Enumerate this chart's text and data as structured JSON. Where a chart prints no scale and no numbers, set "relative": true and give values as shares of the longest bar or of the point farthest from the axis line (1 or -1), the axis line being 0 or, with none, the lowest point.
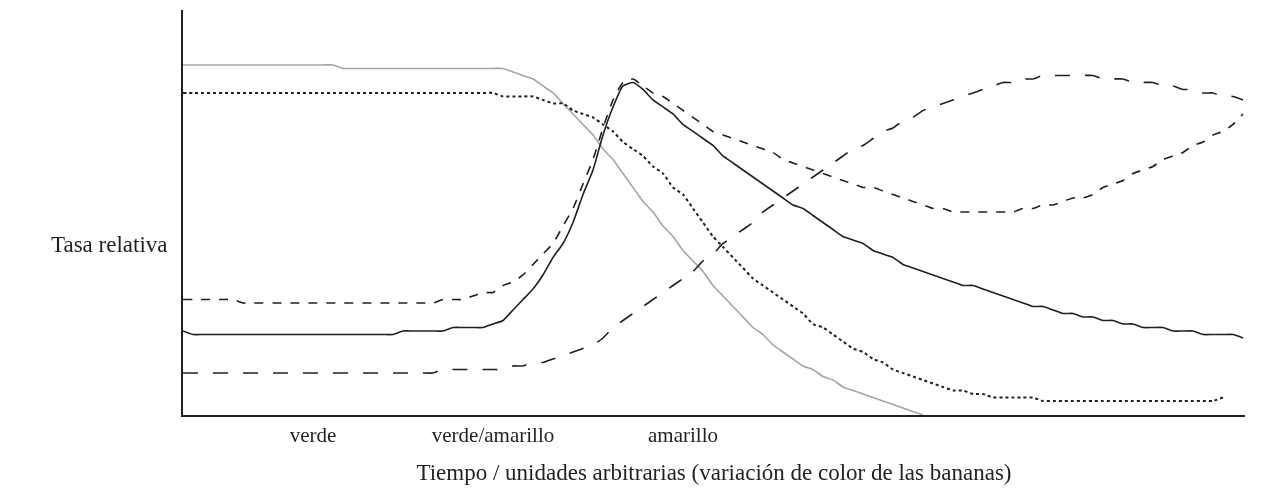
{
  "chart_data": {
    "type": "line",
    "relative": true,
    "xlabel": "Tiempo / unidades arbitrarias (variación de color de las bananas)",
    "ylabel": "Tasa relativa",
    "marker": "none",
    "categories": [
      null,
      null,
      null,
      null,
      null,
      null,
      null,
      null,
      null,
      null,
      null,
      null,
      null,
      "verde",
      null,
      null,
      null,
      null,
      null,
      null,
      null,
      null,
      null,
      null,
      null,
      null,
      null,
      null,
      null,
      null,
      null,
      "verde/amarillo",
      null,
      null,
      null,
      null,
      null,
      null,
      null,
      null,
      null,
      null,
      null,
      null,
      null,
      null,
      null,
      null,
      null,
      null,
      "amarillo",
      null,
      null,
      null,
      null,
      null,
      null,
      null,
      null,
      null,
      null,
      null,
      null,
      null,
      null,
      null,
      null,
      null,
      null,
      null,
      null,
      null,
      null,
      null,
      null,
      null,
      null,
      null,
      null,
      null,
      null,
      null,
      null,
      null,
      null,
      null,
      null,
      null,
      null,
      null,
      null,
      null,
      null,
      null,
      null,
      null,
      null,
      null,
      null,
      null,
      null,
      null,
      null,
      null,
      null,
      null,
      null
    ],
    "series": [
      {
        "color": "#a6a6a6",
        "line_style": "solid",
        "values": [
          1.0,
          1.0,
          1.0,
          1.0,
          1.0,
          1.0,
          1.0,
          1.0,
          1.0,
          1.0,
          1.0,
          1.0,
          1.0,
          1.0,
          1.0,
          1.0,
          0.99,
          0.99,
          0.99,
          0.99,
          0.99,
          0.99,
          0.99,
          0.99,
          0.99,
          0.99,
          0.99,
          0.99,
          0.99,
          0.99,
          0.99,
          0.99,
          0.99,
          0.98,
          0.97,
          0.96,
          0.94,
          0.92,
          0.89,
          0.86,
          0.83,
          0.8,
          0.76,
          0.73,
          0.69,
          0.65,
          0.61,
          0.58,
          0.54,
          0.51,
          0.47,
          0.44,
          0.41,
          0.37,
          0.34,
          0.31,
          0.28,
          0.25,
          0.23,
          0.2,
          0.18,
          0.16,
          0.14,
          0.13,
          0.11,
          0.1,
          0.08,
          0.07,
          0.06,
          0.05,
          0.04,
          0.03,
          0.02,
          0.01,
          0.0,
          null,
          null,
          null,
          null,
          null,
          null,
          null,
          null,
          null,
          null,
          null,
          null,
          null,
          null,
          null,
          null,
          null,
          null,
          null,
          null,
          null,
          null,
          null,
          null,
          null,
          null,
          null,
          null,
          null,
          null,
          null,
          null
        ]
      },
      {
        "color": "#231f20",
        "line_style": "dotted",
        "values": [
          0.92,
          0.92,
          0.92,
          0.92,
          0.92,
          0.92,
          0.92,
          0.92,
          0.92,
          0.92,
          0.92,
          0.92,
          0.92,
          0.92,
          0.92,
          0.92,
          0.92,
          0.92,
          0.92,
          0.92,
          0.92,
          0.92,
          0.92,
          0.92,
          0.92,
          0.92,
          0.92,
          0.92,
          0.92,
          0.92,
          0.92,
          0.92,
          0.91,
          0.91,
          0.91,
          0.91,
          0.9,
          0.89,
          0.89,
          0.87,
          0.86,
          0.85,
          0.83,
          0.81,
          0.78,
          0.76,
          0.74,
          0.71,
          0.69,
          0.65,
          0.63,
          0.59,
          0.55,
          0.51,
          0.48,
          0.45,
          0.42,
          0.39,
          0.37,
          0.35,
          0.33,
          0.31,
          0.29,
          0.26,
          0.25,
          0.23,
          0.21,
          0.19,
          0.18,
          0.16,
          0.15,
          0.13,
          0.12,
          0.11,
          0.1,
          0.09,
          0.08,
          0.07,
          0.07,
          0.06,
          0.06,
          0.05,
          0.05,
          0.05,
          0.05,
          0.05,
          0.04,
          0.04,
          0.04,
          0.04,
          0.04,
          0.04,
          0.04,
          0.04,
          0.04,
          0.04,
          0.04,
          0.04,
          0.04,
          0.04,
          0.04,
          0.04,
          0.04,
          0.04,
          0.05,
          null,
          null
        ]
      },
      {
        "color": "#231f20",
        "line_style": "solid",
        "values": [
          0.24,
          0.23,
          0.23,
          0.23,
          0.23,
          0.23,
          0.23,
          0.23,
          0.23,
          0.23,
          0.23,
          0.23,
          0.23,
          0.23,
          0.23,
          0.23,
          0.23,
          0.23,
          0.23,
          0.23,
          0.23,
          0.23,
          0.24,
          0.24,
          0.24,
          0.24,
          0.24,
          0.25,
          0.25,
          0.25,
          0.25,
          0.26,
          0.27,
          0.3,
          0.33,
          0.36,
          0.4,
          0.45,
          0.49,
          0.55,
          0.63,
          0.7,
          0.8,
          0.88,
          0.94,
          0.95,
          0.93,
          0.9,
          0.88,
          0.86,
          0.83,
          0.81,
          0.79,
          0.77,
          0.74,
          0.72,
          0.7,
          0.68,
          0.66,
          0.64,
          0.62,
          0.6,
          0.59,
          0.57,
          0.55,
          0.53,
          0.51,
          0.5,
          0.49,
          0.47,
          0.46,
          0.45,
          0.43,
          0.42,
          0.41,
          0.4,
          0.39,
          0.38,
          0.37,
          0.37,
          0.36,
          0.35,
          0.34,
          0.33,
          0.32,
          0.31,
          0.31,
          0.3,
          0.29,
          0.29,
          0.28,
          0.28,
          0.27,
          0.27,
          0.26,
          0.26,
          0.25,
          0.25,
          0.25,
          0.24,
          0.24,
          0.24,
          0.23,
          0.23,
          0.23,
          0.23,
          0.22
        ]
      },
      {
        "color": "#231f20",
        "line_style": "dashed",
        "values": [
          0.33,
          0.33,
          0.33,
          0.33,
          0.33,
          0.33,
          0.32,
          0.32,
          0.32,
          0.32,
          0.32,
          0.32,
          0.32,
          0.32,
          0.32,
          0.32,
          0.32,
          0.32,
          0.32,
          0.32,
          0.32,
          0.32,
          0.32,
          0.32,
          0.32,
          0.32,
          0.33,
          0.33,
          0.33,
          0.34,
          0.35,
          0.35,
          0.37,
          0.38,
          0.4,
          0.43,
          0.46,
          0.49,
          0.54,
          0.59,
          0.66,
          0.73,
          0.82,
          0.9,
          0.95,
          0.96,
          0.94,
          0.92,
          0.91,
          0.89,
          0.87,
          0.85,
          0.83,
          0.81,
          0.8,
          0.79,
          0.78,
          0.77,
          0.76,
          0.75,
          0.73,
          0.72,
          0.71,
          0.7,
          0.69,
          0.68,
          0.67,
          0.66,
          0.65,
          0.65,
          0.64,
          0.63,
          0.62,
          0.61,
          0.6,
          0.59,
          0.59,
          0.58,
          0.58,
          0.58,
          0.58,
          0.58,
          0.58,
          0.58,
          0.59,
          0.59,
          0.6,
          0.6,
          0.61,
          0.62,
          0.62,
          0.63,
          0.65,
          0.66,
          0.67,
          0.69,
          0.7,
          0.71,
          0.73,
          0.74,
          0.75,
          0.77,
          0.78,
          0.8,
          0.81,
          0.83,
          0.86
        ]
      },
      {
        "color": "#231f20",
        "line_style": "longdash",
        "values": [
          0.12,
          0.12,
          0.12,
          0.12,
          0.12,
          0.12,
          0.12,
          0.12,
          0.12,
          0.12,
          0.12,
          0.12,
          0.12,
          0.12,
          0.12,
          0.12,
          0.12,
          0.12,
          0.12,
          0.12,
          0.12,
          0.12,
          0.12,
          0.12,
          0.12,
          0.12,
          0.13,
          0.13,
          0.13,
          0.13,
          0.13,
          0.13,
          0.13,
          0.14,
          0.14,
          0.15,
          0.15,
          0.16,
          0.17,
          0.18,
          0.19,
          0.2,
          0.22,
          0.25,
          0.27,
          0.29,
          0.31,
          0.33,
          0.35,
          0.37,
          0.39,
          0.41,
          0.44,
          0.46,
          0.49,
          0.51,
          0.53,
          0.55,
          0.58,
          0.6,
          0.62,
          0.64,
          0.66,
          0.68,
          0.7,
          0.72,
          0.74,
          0.76,
          0.77,
          0.79,
          0.81,
          0.82,
          0.84,
          0.85,
          0.87,
          0.88,
          0.89,
          0.9,
          0.91,
          0.92,
          0.93,
          0.94,
          0.95,
          0.95,
          0.96,
          0.96,
          0.97,
          0.97,
          0.97,
          0.97,
          0.97,
          0.97,
          0.96,
          0.96,
          0.96,
          0.95,
          0.95,
          0.95,
          0.94,
          0.94,
          0.93,
          0.93,
          0.92,
          0.92,
          0.91,
          0.91,
          0.9
        ]
      }
    ]
  }
}
